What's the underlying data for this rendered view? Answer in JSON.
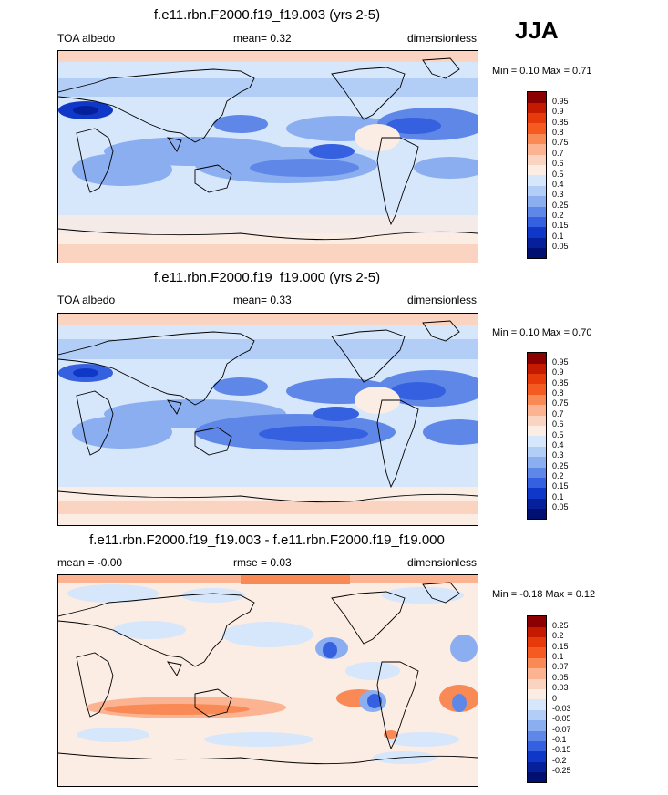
{
  "season": "JJA",
  "panels": [
    {
      "title": "f.e11.rbn.F2000.f19_f19.003 (yrs 2-5)",
      "left_label": "TOA albedo",
      "mean_label": "mean=  0.32",
      "units": "dimensionless",
      "minmax": "Min =   0.10 Max =   0.71"
    },
    {
      "title": "f.e11.rbn.F2000.f19_f19.000 (yrs 2-5)",
      "left_label": "TOA albedo",
      "mean_label": "mean=  0.33",
      "units": "dimensionless",
      "minmax": "Min =   0.10 Max =   0.70"
    },
    {
      "title": "f.e11.rbn.F2000.f19_f19.003 - f.e11.rbn.F2000.f19_f19.000",
      "left_label": "mean =  -0.00",
      "mean_label": "rmse =   0.03",
      "units": "dimensionless",
      "minmax": "Min =  -0.18 Max =   0.12"
    }
  ],
  "chart_data": [
    {
      "type": "heatmap",
      "title": "f.e11.rbn.F2000.f19_f19.003 (yrs 2-5)",
      "variable": "TOA albedo",
      "units": "dimensionless",
      "mean": 0.32,
      "min": 0.1,
      "max": 0.71,
      "colorbar_levels": [
        "0.95",
        "0.9",
        "0.85",
        "0.8",
        "0.75",
        "0.7",
        "0.6",
        "0.5",
        "0.4",
        "0.3",
        "0.25",
        "0.2",
        "0.15",
        "0.1",
        "0.05"
      ],
      "colorbar_colors": [
        "#8b0000",
        "#c41a00",
        "#e63a0a",
        "#f55a20",
        "#f98a55",
        "#fbb391",
        "#fad4c0",
        "#fbece4",
        "#d6e6fb",
        "#b2cdf6",
        "#8aaef0",
        "#5f87e8",
        "#3560e0",
        "#1038c8",
        "#05209a",
        "#001071"
      ]
    },
    {
      "type": "heatmap",
      "title": "f.e11.rbn.F2000.f19_f19.000 (yrs 2-5)",
      "variable": "TOA albedo",
      "units": "dimensionless",
      "mean": 0.33,
      "min": 0.1,
      "max": 0.7,
      "colorbar_levels": [
        "0.95",
        "0.9",
        "0.85",
        "0.8",
        "0.75",
        "0.7",
        "0.6",
        "0.5",
        "0.4",
        "0.3",
        "0.25",
        "0.2",
        "0.15",
        "0.1",
        "0.05"
      ],
      "colorbar_colors": [
        "#8b0000",
        "#c41a00",
        "#e63a0a",
        "#f55a20",
        "#f98a55",
        "#fbb391",
        "#fad4c0",
        "#fbece4",
        "#d6e6fb",
        "#b2cdf6",
        "#8aaef0",
        "#5f87e8",
        "#3560e0",
        "#1038c8",
        "#05209a",
        "#001071"
      ]
    },
    {
      "type": "heatmap",
      "title": "f.e11.rbn.F2000.f19_f19.003 - f.e11.rbn.F2000.f19_f19.000",
      "variable": "difference",
      "units": "dimensionless",
      "mean": -0.0,
      "rmse": 0.03,
      "min": -0.18,
      "max": 0.12,
      "colorbar_levels": [
        "0.25",
        "0.2",
        "0.15",
        "0.1",
        "0.07",
        "0.05",
        "0.03",
        "0",
        "-0.03",
        "-0.05",
        "-0.07",
        "-0.1",
        "-0.15",
        "-0.2",
        "-0.25"
      ],
      "colorbar_colors": [
        "#8b0000",
        "#c41a00",
        "#e63a0a",
        "#f55a20",
        "#f98a55",
        "#fbb391",
        "#fad4c0",
        "#fbece4",
        "#d6e6fb",
        "#b2cdf6",
        "#8aaef0",
        "#5f87e8",
        "#3560e0",
        "#1038c8",
        "#05209a",
        "#001071"
      ]
    }
  ]
}
